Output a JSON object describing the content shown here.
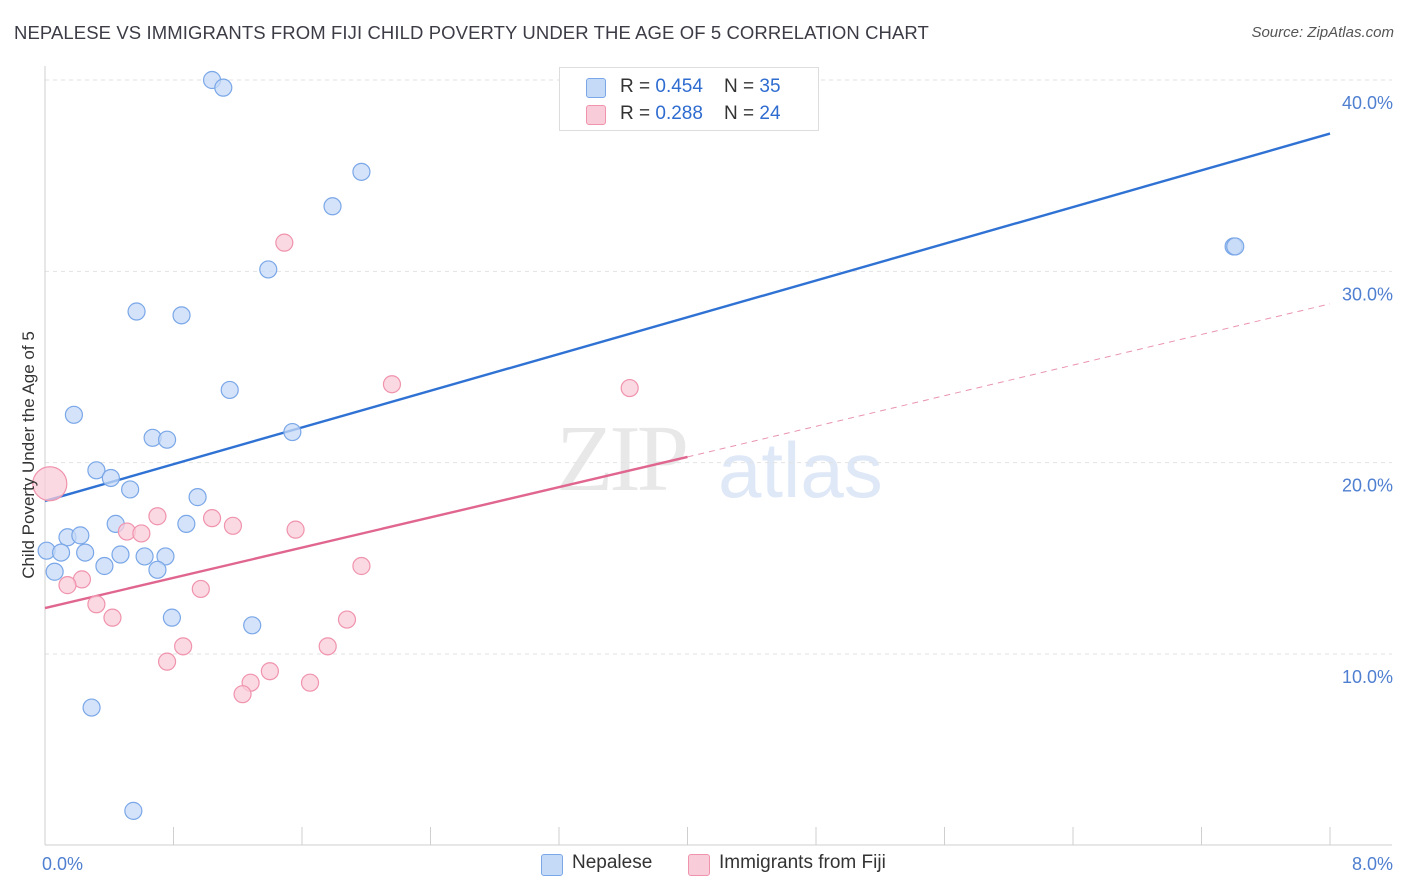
{
  "title": "NEPALESE VS IMMIGRANTS FROM FIJI CHILD POVERTY UNDER THE AGE OF 5 CORRELATION CHART",
  "source": "Source: ZipAtlas.com",
  "watermark": {
    "part1": "ZIP",
    "part2": "atlas"
  },
  "legend_top": [
    {
      "r_label": "R = ",
      "r_value": "0.454",
      "n_label": "N = ",
      "n_value": "35",
      "color": "#a9c8f3"
    },
    {
      "r_label": "R = ",
      "r_value": "0.288",
      "n_label": "N = ",
      "n_value": "24",
      "color": "#f7b8cb"
    }
  ],
  "legend_bottom": [
    {
      "label": "Nepalese",
      "color": "#a9c8f3"
    },
    {
      "label": "Immigrants from Fiji",
      "color": "#f7b8cb"
    }
  ],
  "chart_data": {
    "type": "scatter",
    "title": "NEPALESE VS IMMIGRANTS FROM FIJI CHILD POVERTY UNDER THE AGE OF 5 CORRELATION CHART",
    "xlabel": "",
    "ylabel": "Child Poverty Under the Age of 5",
    "xlim": [
      0,
      8
    ],
    "ylim": [
      0,
      40
    ],
    "x_tick_labels": [
      "0.0%",
      "8.0%"
    ],
    "y_ticks": [
      10,
      20,
      30,
      40
    ],
    "y_tick_labels": [
      "10.0%",
      "20.0%",
      "30.0%",
      "40.0%"
    ],
    "grid": true,
    "series": [
      {
        "name": "Nepalese",
        "color": "#7aa7e8",
        "fill": "#c5daf7",
        "line_color": "#2f72d4",
        "trend": {
          "x": [
            0,
            8
          ],
          "y": [
            18.0,
            37.2
          ]
        },
        "points": [
          {
            "x": 1.04,
            "y": 40.0
          },
          {
            "x": 1.11,
            "y": 39.6
          },
          {
            "x": 1.97,
            "y": 35.2
          },
          {
            "x": 1.79,
            "y": 33.4
          },
          {
            "x": 1.39,
            "y": 30.1
          },
          {
            "x": 0.57,
            "y": 27.9
          },
          {
            "x": 0.85,
            "y": 27.7
          },
          {
            "x": 1.15,
            "y": 23.8
          },
          {
            "x": 0.18,
            "y": 22.5
          },
          {
            "x": 1.54,
            "y": 21.6
          },
          {
            "x": 0.67,
            "y": 21.3
          },
          {
            "x": 0.76,
            "y": 21.2
          },
          {
            "x": 0.32,
            "y": 19.6
          },
          {
            "x": 0.41,
            "y": 19.2
          },
          {
            "x": 0.53,
            "y": 18.6
          },
          {
            "x": 0.95,
            "y": 18.2
          },
          {
            "x": 0.44,
            "y": 16.8
          },
          {
            "x": 0.88,
            "y": 16.8
          },
          {
            "x": 0.14,
            "y": 16.1
          },
          {
            "x": 0.22,
            "y": 16.2
          },
          {
            "x": 0.01,
            "y": 15.4
          },
          {
            "x": 0.1,
            "y": 15.3
          },
          {
            "x": 0.25,
            "y": 15.3
          },
          {
            "x": 0.47,
            "y": 15.2
          },
          {
            "x": 0.62,
            "y": 15.1
          },
          {
            "x": 0.75,
            "y": 15.1
          },
          {
            "x": 0.37,
            "y": 14.6
          },
          {
            "x": 0.7,
            "y": 14.4
          },
          {
            "x": 0.06,
            "y": 14.3
          },
          {
            "x": 0.79,
            "y": 11.9
          },
          {
            "x": 1.29,
            "y": 11.5
          },
          {
            "x": 0.29,
            "y": 7.2
          },
          {
            "x": 0.55,
            "y": 1.8
          },
          {
            "x": 7.4,
            "y": 31.3
          },
          {
            "x": 7.41,
            "y": 31.3
          }
        ]
      },
      {
        "name": "Immigrants from Fiji",
        "color": "#f093ad",
        "fill": "#f9ccd9",
        "line_color": "#e06690",
        "trend": {
          "x": [
            0,
            4.0
          ],
          "y": [
            12.4,
            20.3
          ]
        },
        "trend_extension": {
          "x": [
            4.0,
            8
          ],
          "y": [
            20.3,
            28.3
          ]
        },
        "points": [
          {
            "x": 0.03,
            "y": 18.9,
            "big": true
          },
          {
            "x": 1.49,
            "y": 31.5
          },
          {
            "x": 2.16,
            "y": 24.1
          },
          {
            "x": 3.64,
            "y": 23.9
          },
          {
            "x": 0.7,
            "y": 17.2
          },
          {
            "x": 1.04,
            "y": 17.1
          },
          {
            "x": 1.17,
            "y": 16.7
          },
          {
            "x": 1.56,
            "y": 16.5
          },
          {
            "x": 0.51,
            "y": 16.4
          },
          {
            "x": 0.6,
            "y": 16.3
          },
          {
            "x": 1.97,
            "y": 14.6
          },
          {
            "x": 0.23,
            "y": 13.9
          },
          {
            "x": 0.14,
            "y": 13.6
          },
          {
            "x": 0.97,
            "y": 13.4
          },
          {
            "x": 0.32,
            "y": 12.6
          },
          {
            "x": 0.42,
            "y": 11.9
          },
          {
            "x": 1.88,
            "y": 11.8
          },
          {
            "x": 0.86,
            "y": 10.4
          },
          {
            "x": 1.76,
            "y": 10.4
          },
          {
            "x": 0.76,
            "y": 9.6
          },
          {
            "x": 1.4,
            "y": 9.1
          },
          {
            "x": 1.28,
            "y": 8.5
          },
          {
            "x": 1.65,
            "y": 8.5
          },
          {
            "x": 1.23,
            "y": 7.9
          }
        ]
      }
    ]
  }
}
